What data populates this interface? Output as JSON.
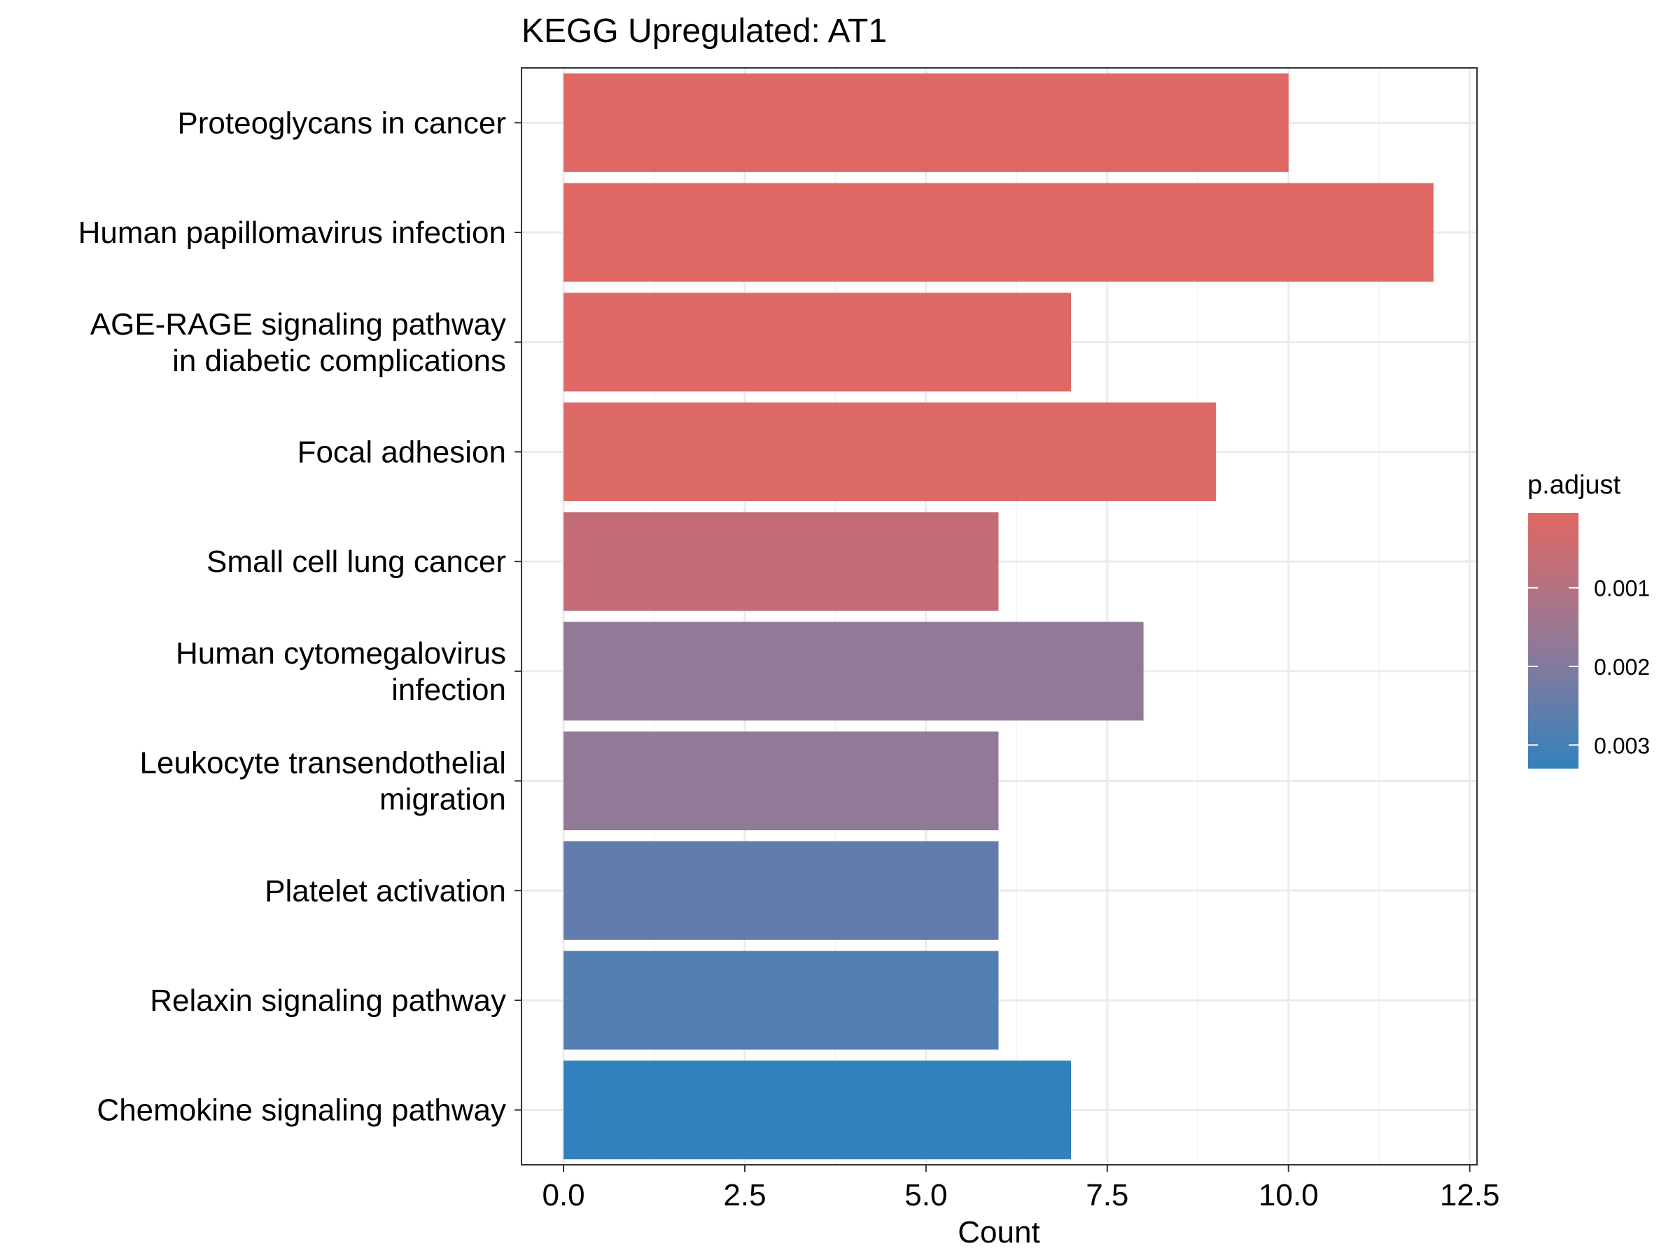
{
  "chart_data": {
    "type": "bar",
    "orientation": "horizontal",
    "title": "KEGG Upregulated: AT1",
    "xlabel": "Count",
    "ylabel": "",
    "xlim": [
      -0.58,
      12.6
    ],
    "x_ticks": [
      "0.0",
      "2.5",
      "5.0",
      "7.5",
      "10.0",
      "12.5"
    ],
    "x_tick_values": [
      0,
      2.5,
      5,
      7.5,
      10,
      12.5
    ],
    "grid": true,
    "categories": [
      "Proteoglycans in cancer",
      "Human papillomavirus infection",
      "AGE-RAGE signaling pathway\nin diabetic complications",
      "Focal adhesion",
      "Small cell lung cancer",
      "Human cytomegalovirus\ninfection",
      "Leukocyte transendothelial\nmigration",
      "Platelet activation",
      "Relaxin signaling pathway",
      "Chemokine signaling pathway"
    ],
    "values": [
      10,
      12,
      7,
      9,
      6,
      8,
      6,
      6,
      6,
      7
    ],
    "p_adjust": [
      0.00017,
      0.00017,
      0.00025,
      0.0003,
      0.0008,
      0.0017,
      0.0017,
      0.0026,
      0.0028,
      0.0033
    ],
    "colors": [
      "#e06864",
      "#e06864",
      "#de6966",
      "#dd6a67",
      "#c46c76",
      "#917998",
      "#917998",
      "#627dab",
      "#547fb2",
      "#3381bc"
    ],
    "legend": {
      "title": "p.adjust",
      "position": "right",
      "labels": [
        "0.001",
        "0.002",
        "0.003"
      ],
      "label_values": [
        0.001,
        0.002,
        0.003
      ],
      "range": [
        5e-05,
        0.0033
      ],
      "color_low": "#e06864",
      "color_mid": "#917998",
      "color_high": "#3381bc"
    }
  }
}
